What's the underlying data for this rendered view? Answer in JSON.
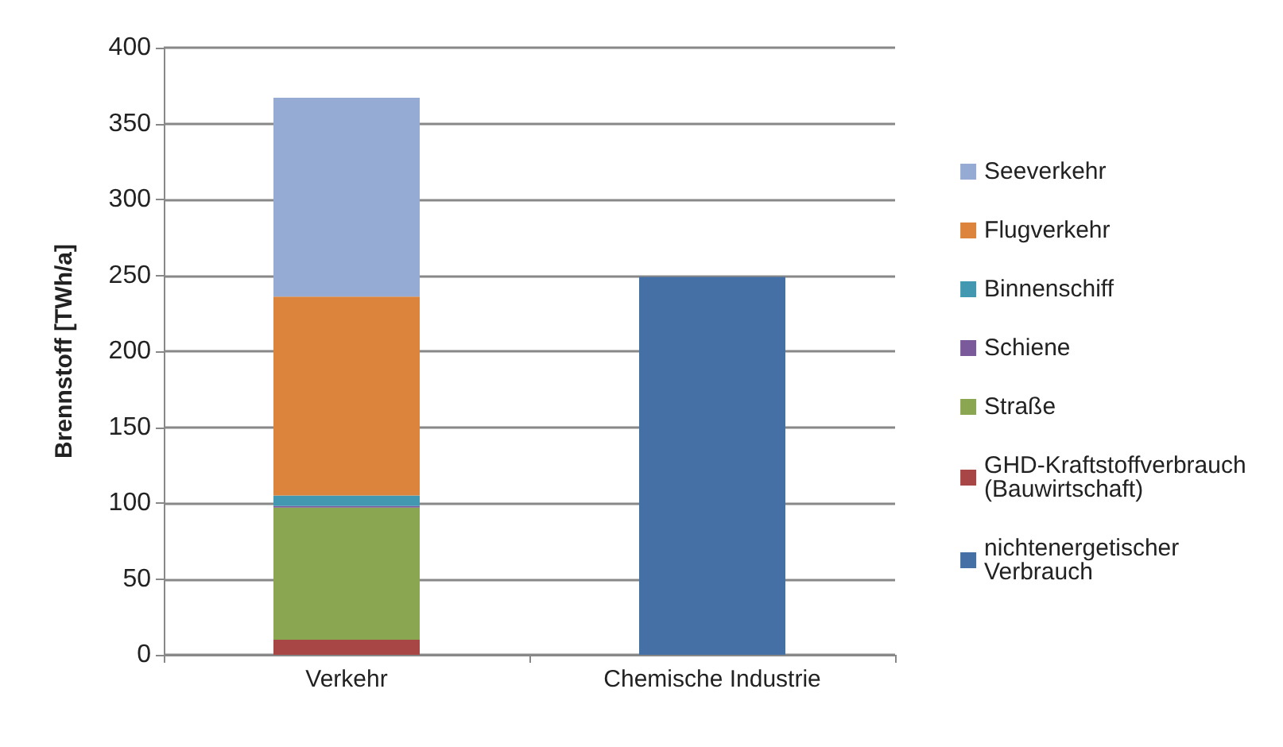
{
  "chart_data": {
    "type": "bar",
    "stacked": true,
    "ylabel": "Brennstoff [TWh/a]",
    "categories": [
      "Verkehr",
      "Chemische Industrie"
    ],
    "series": [
      {
        "name": "nichtenergetischer Verbrauch",
        "color": "#4570a5",
        "values": [
          null,
          249
        ]
      },
      {
        "name": "GHD-Kraftstoffverbrauch (Bauwirtschaft)",
        "color": "#a84545",
        "values": [
          10,
          null
        ]
      },
      {
        "name": "Straße",
        "color": "#8ba650",
        "values": [
          87,
          null
        ]
      },
      {
        "name": "Schiene",
        "color": "#7b5a9b",
        "values": [
          1,
          null
        ]
      },
      {
        "name": "Binnenschiff",
        "color": "#4298b0",
        "values": [
          7,
          null
        ]
      },
      {
        "name": "Flugverkehr",
        "color": "#dd843c",
        "values": [
          131,
          null
        ]
      },
      {
        "name": "Seeverkehr",
        "color": "#95abd3",
        "values": [
          131,
          null
        ]
      }
    ],
    "ylim": [
      0,
      400
    ],
    "yticks": [
      0,
      50,
      100,
      150,
      200,
      250,
      300,
      350,
      400
    ],
    "grid": "y",
    "legend": "right"
  }
}
